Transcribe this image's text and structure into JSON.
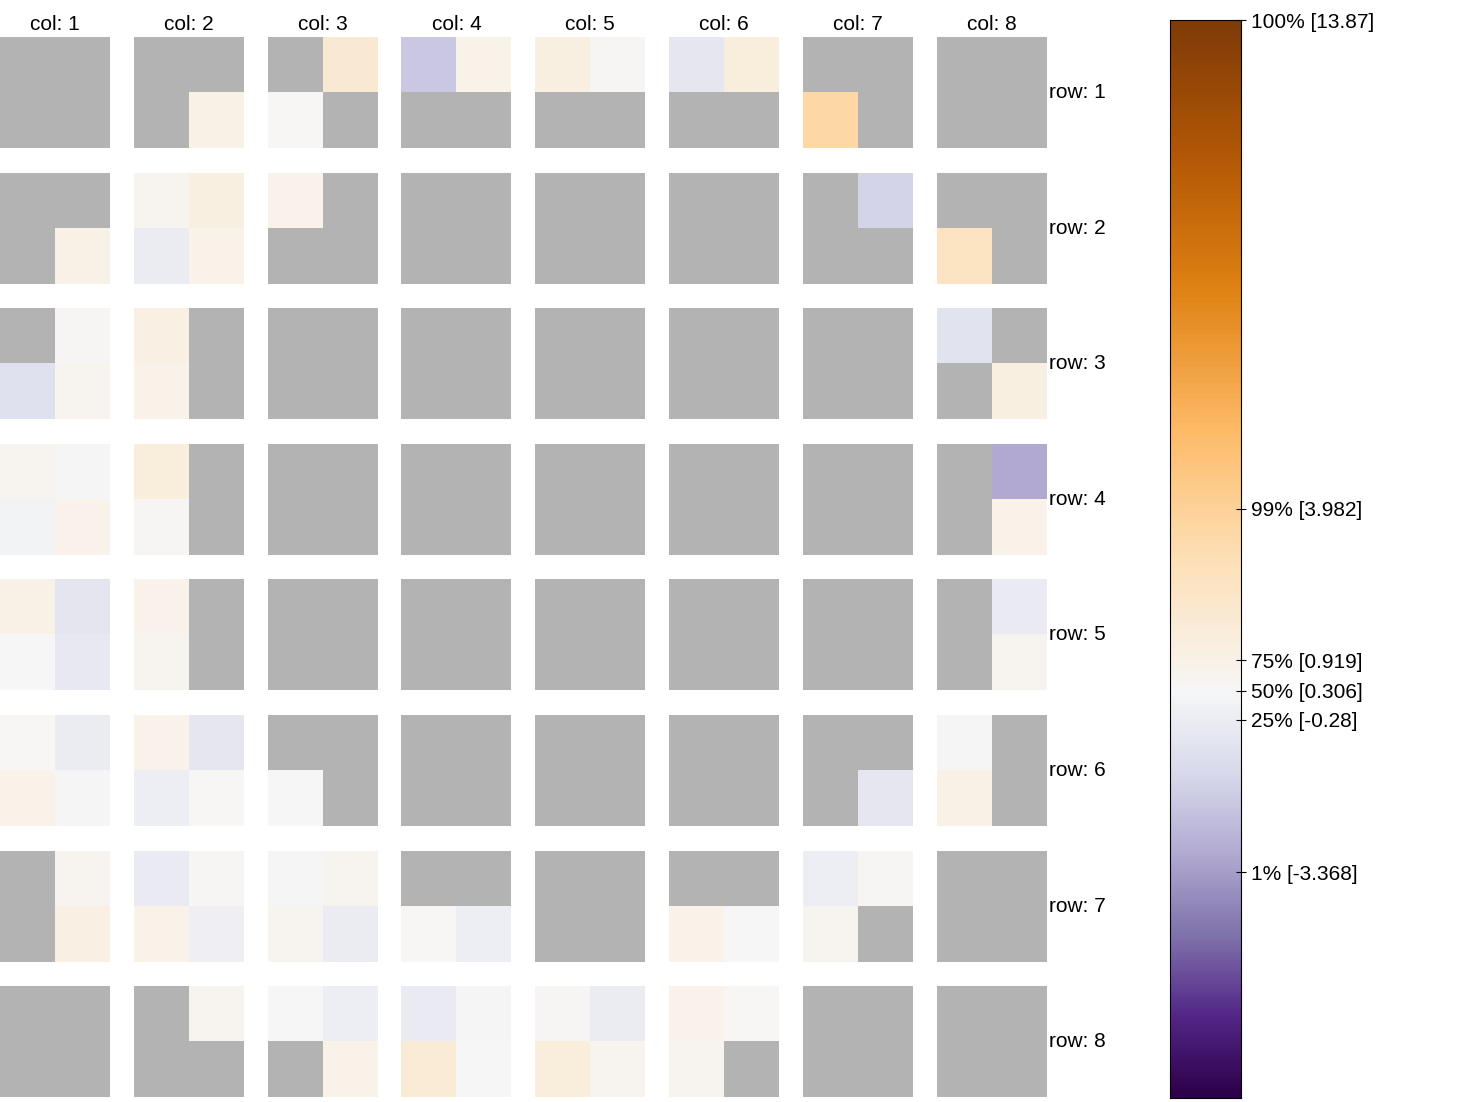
{
  "chart_data": {
    "type": "heatmap",
    "col_labels": [
      "col: 1",
      "col: 2",
      "col: 3",
      "col: 4",
      "col: 5",
      "col: 6",
      "col: 7",
      "col: 8"
    ],
    "row_labels": [
      "row: 1",
      "row: 2",
      "row: 3",
      "row: 4",
      "row: 5",
      "row: 6",
      "row: 7",
      "row: 8"
    ],
    "cells": [
      [
        null,
        null,
        null,
        null,
        null,
        1.8,
        -2.0,
        0.9,
        1.2,
        0.5,
        -0.6,
        1.4,
        null,
        null,
        null,
        null
      ],
      [
        null,
        null,
        null,
        1.0,
        0.4,
        null,
        null,
        null,
        null,
        null,
        null,
        null,
        3.5,
        null,
        null,
        null
      ],
      [
        null,
        null,
        0.6,
        1.2,
        0.8,
        null,
        null,
        null,
        null,
        null,
        null,
        null,
        null,
        -1.5,
        null,
        null
      ],
      [
        null,
        1.0,
        -0.3,
        0.9,
        null,
        null,
        null,
        null,
        null,
        null,
        null,
        null,
        null,
        null,
        2.5,
        null
      ],
      [
        null,
        0.5,
        1.1,
        null,
        null,
        null,
        null,
        null,
        null,
        null,
        null,
        null,
        null,
        null,
        -0.8,
        null
      ],
      [
        -0.9,
        0.7,
        0.9,
        null,
        null,
        null,
        null,
        null,
        null,
        null,
        null,
        null,
        null,
        null,
        null,
        1.2
      ],
      [
        0.6,
        0.2,
        1.4,
        null,
        null,
        null,
        null,
        null,
        null,
        null,
        null,
        null,
        null,
        null,
        null,
        -3.0
      ],
      [
        0.1,
        0.8,
        0.5,
        null,
        null,
        null,
        null,
        null,
        null,
        null,
        null,
        null,
        null,
        null,
        null,
        0.9
      ],
      [
        1.0,
        -0.7,
        0.8,
        null,
        null,
        null,
        null,
        null,
        null,
        null,
        null,
        null,
        null,
        null,
        null,
        -0.4
      ],
      [
        0.3,
        -0.5,
        0.6,
        null,
        null,
        null,
        null,
        null,
        null,
        null,
        null,
        null,
        null,
        null,
        null,
        0.7
      ],
      [
        0.4,
        -0.3,
        0.8,
        -0.6,
        null,
        null,
        null,
        null,
        null,
        null,
        null,
        null,
        null,
        null,
        0.2,
        null
      ],
      [
        0.9,
        0.2,
        -0.2,
        0.4,
        0.3,
        null,
        null,
        null,
        null,
        null,
        null,
        null,
        null,
        -0.6,
        1.0,
        null
      ],
      [
        null,
        0.6,
        -0.4,
        0.5,
        0.2,
        0.7,
        null,
        null,
        null,
        null,
        null,
        null,
        -0.2,
        0.5,
        null,
        null
      ],
      [
        null,
        1.1,
        0.9,
        -0.1,
        0.6,
        -0.3,
        0.4,
        -0.2,
        null,
        null,
        0.9,
        0.3,
        0.6,
        null,
        null,
        null
      ],
      [
        null,
        null,
        null,
        0.7,
        0.3,
        -0.2,
        -0.4,
        0.2,
        0.5,
        -0.3,
        0.8,
        0.4,
        null,
        null,
        null,
        null
      ],
      [
        null,
        null,
        null,
        null,
        null,
        0.9,
        1.6,
        0.3,
        1.4,
        0.6,
        0.7,
        null,
        null,
        null,
        null,
        null
      ]
    ],
    "colorbar": {
      "range": [
        -7.93,
        13.87
      ],
      "center": 0.306,
      "ticks": [
        {
          "value": 13.87,
          "label": "100% [13.87]"
        },
        {
          "value": 3.982,
          "label": "99% [3.982]"
        },
        {
          "value": 0.919,
          "label": "75% [0.919]"
        },
        {
          "value": 0.306,
          "label": "50% [0.306]"
        },
        {
          "value": -0.28,
          "label": "25% [-0.28]"
        },
        {
          "value": -3.368,
          "label": "1% [-3.368]"
        }
      ]
    }
  }
}
